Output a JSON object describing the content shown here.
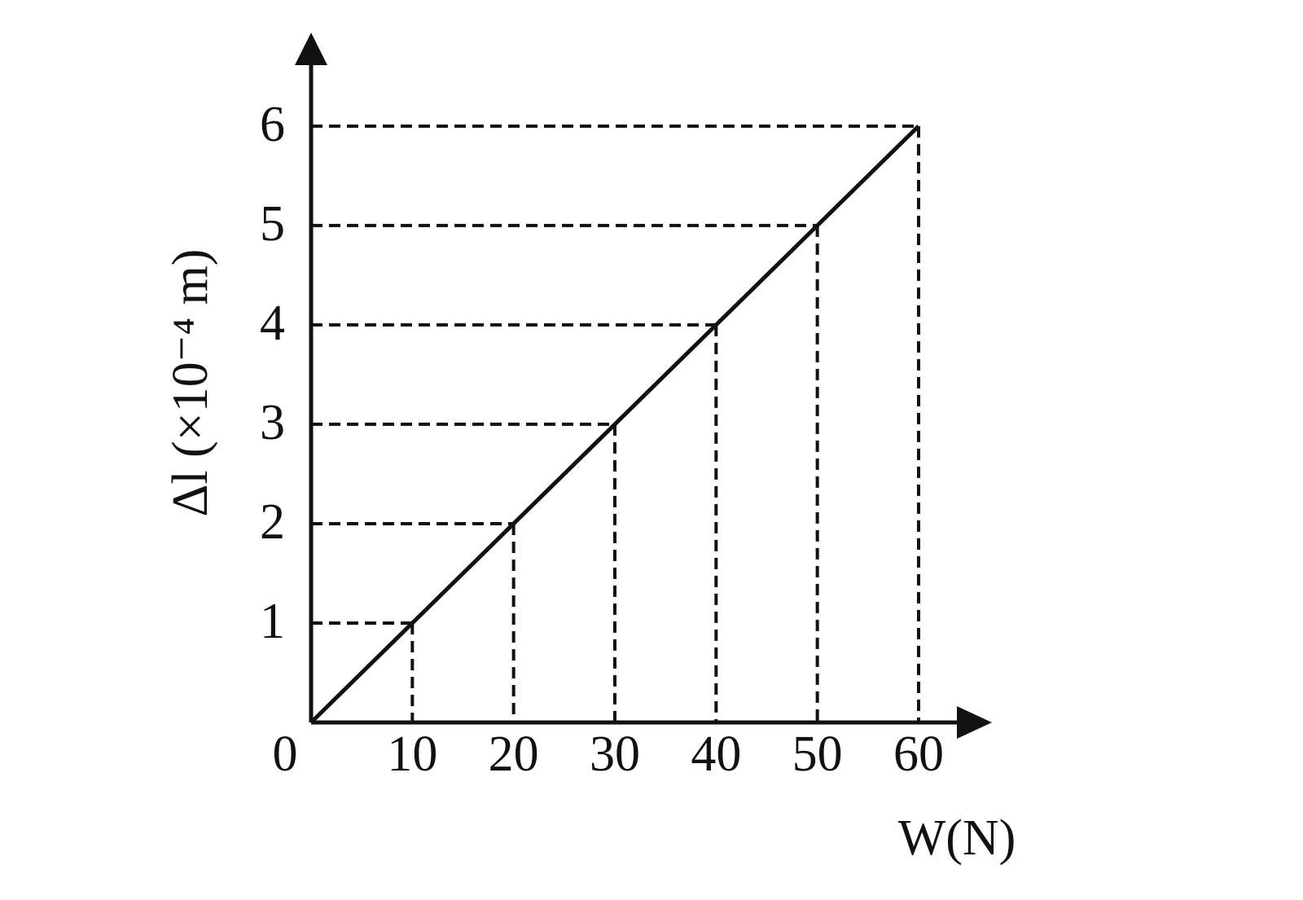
{
  "chart_data": {
    "type": "line",
    "x_label": "W(N)",
    "y_label": "Δl (×10⁻⁴ m)",
    "x": [
      0,
      10,
      20,
      30,
      40,
      50,
      60
    ],
    "series": [
      {
        "color": "#111111",
        "values": [
          0,
          1,
          2,
          3,
          4,
          5,
          6
        ]
      }
    ],
    "xlim": [
      0,
      67
    ],
    "ylim": [
      0,
      6.9
    ],
    "xticks": [
      0,
      10,
      20,
      30,
      40,
      50,
      60
    ],
    "yticks": [
      1,
      2,
      3,
      4,
      5,
      6
    ],
    "projection_lines": true
  }
}
